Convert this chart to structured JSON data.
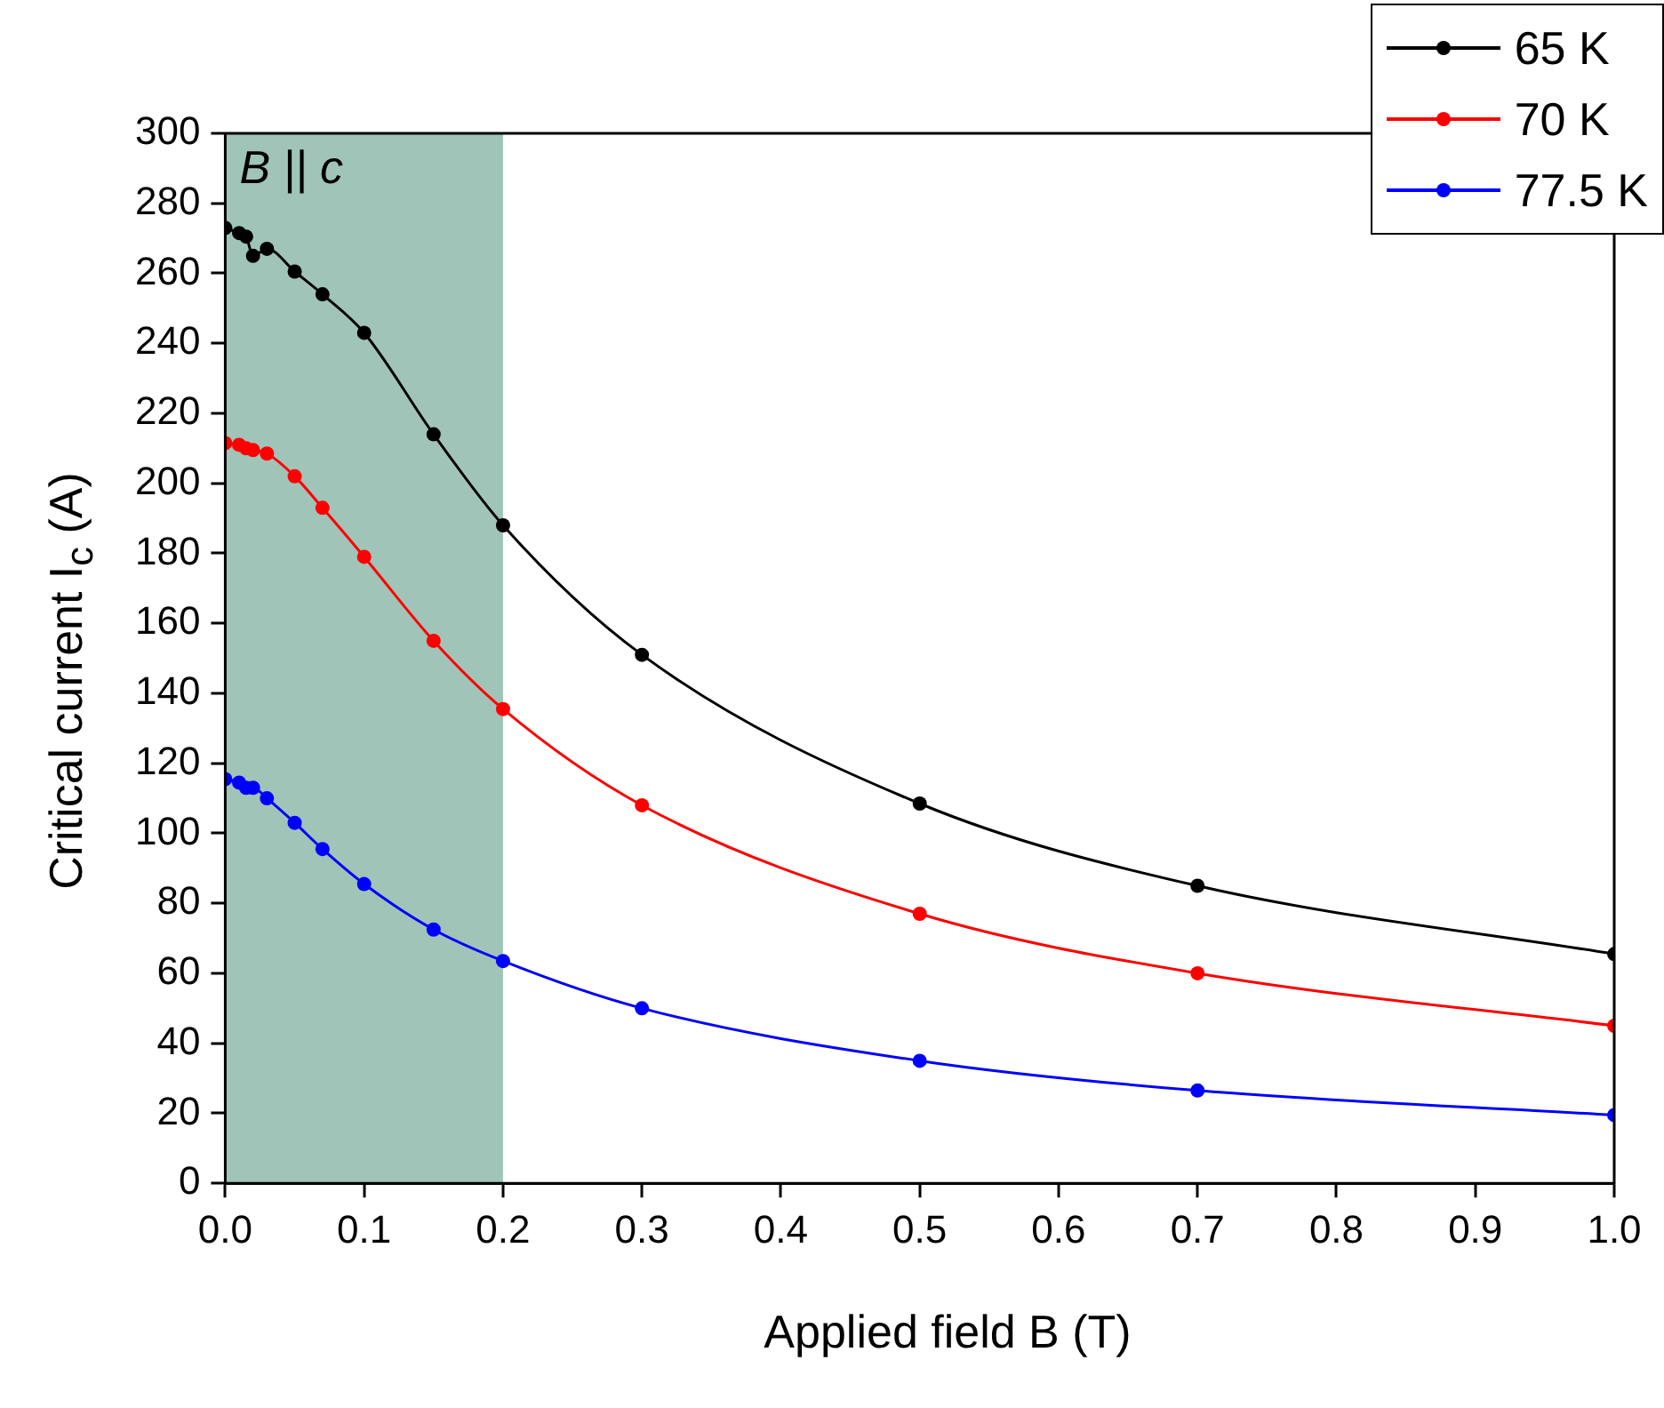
{
  "chart_data": {
    "type": "line",
    "xlabel": "Applied field B (T)",
    "ylabel": "Critical current I$_{c}$ (A)",
    "xlim": [
      0,
      1
    ],
    "ylim": [
      0,
      300
    ],
    "xticks": [
      {
        "value": 0,
        "label": "0.0"
      },
      {
        "value": 0.1,
        "label": "0.1"
      },
      {
        "value": 0.2,
        "label": "0.2"
      },
      {
        "value": 0.3,
        "label": "0.3"
      },
      {
        "value": 0.4,
        "label": "0.4"
      },
      {
        "value": 0.5,
        "label": "0.5"
      },
      {
        "value": 0.6,
        "label": "0.6"
      },
      {
        "value": 0.7,
        "label": "0.7"
      },
      {
        "value": 0.8,
        "label": "0.8"
      },
      {
        "value": 0.9,
        "label": "0.9"
      },
      {
        "value": 1,
        "label": "1.0"
      }
    ],
    "yticks": [
      0,
      20,
      40,
      60,
      80,
      100,
      120,
      140,
      160,
      180,
      200,
      220,
      240,
      260,
      280,
      300
    ],
    "x": [
      0,
      0.01,
      0.015,
      0.02,
      0.03,
      0.05,
      0.07,
      0.1,
      0.15,
      0.2,
      0.3,
      0.5,
      0.7,
      1.0
    ],
    "series": [
      {
        "name": "65 K",
        "color": "#000000",
        "values": [
          273,
          271.5,
          270.5,
          265,
          267,
          260.5,
          254,
          243,
          214,
          188,
          151,
          108.5,
          85,
          65.5
        ]
      },
      {
        "name": "70 K",
        "color": "#ff0000",
        "values": [
          211.5,
          211,
          210,
          209.5,
          208.5,
          202,
          193,
          179,
          155,
          135.5,
          108,
          77,
          60,
          45
        ]
      },
      {
        "name": "77.5 K",
        "color": "#0000ff",
        "values": [
          115.5,
          114.5,
          113,
          113,
          110,
          103,
          95.5,
          85.5,
          72.5,
          63.5,
          50,
          35,
          26.5,
          19.5
        ]
      }
    ],
    "bands": [
      {
        "axis": "x",
        "from": 0,
        "to": 0.2,
        "label": "B || c",
        "color": "#a0c4b8"
      }
    ],
    "legend": "top right",
    "marker": "circle",
    "line_style": "solid",
    "grid": false
  }
}
